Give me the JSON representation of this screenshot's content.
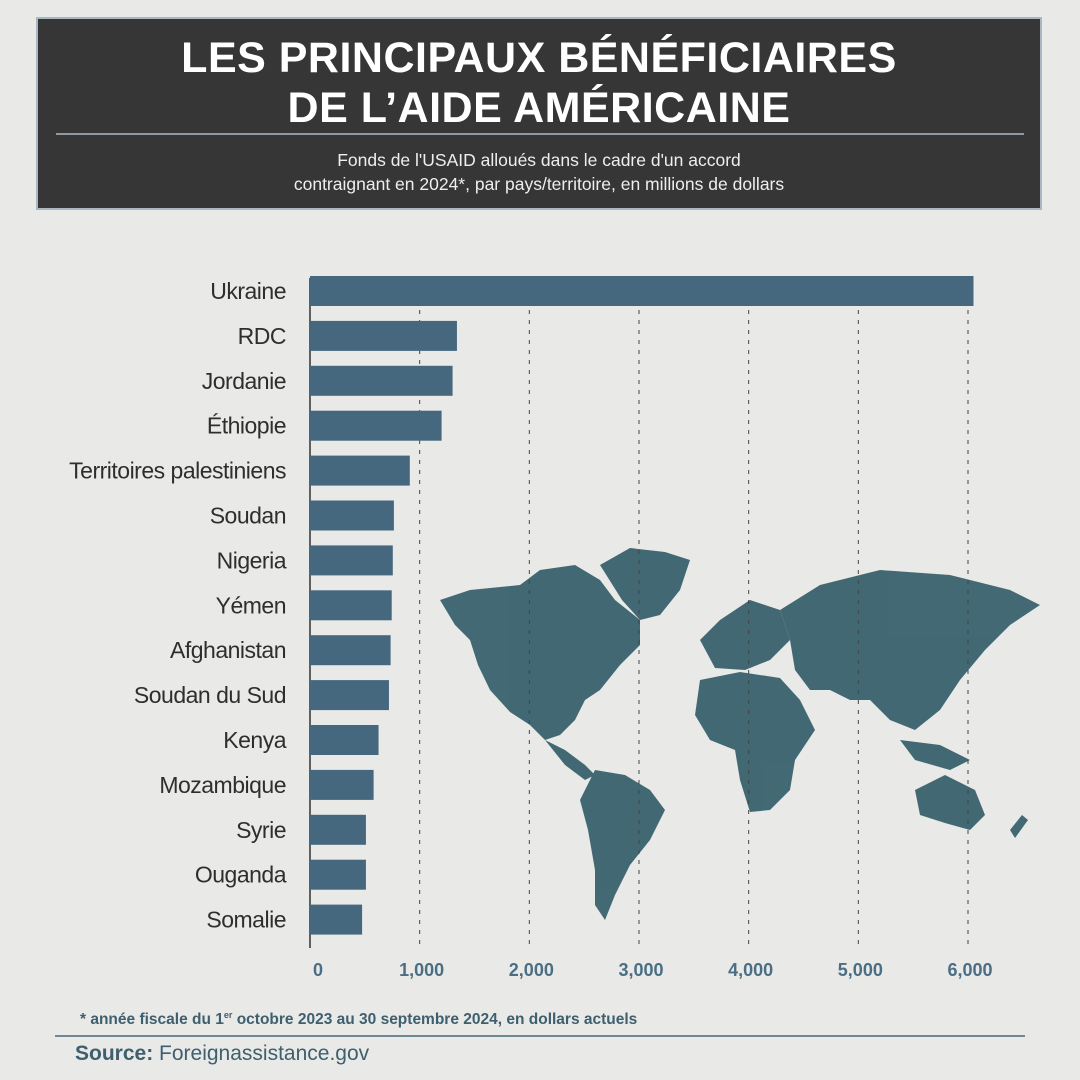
{
  "header": {
    "title_line1": "LES PRINCIPAUX BÉNÉFICIAIRES",
    "title_line2": "DE L’AIDE AMÉRICAINE",
    "subtitle_line1": "Fonds de l'USAID alloués dans le cadre d'un accord",
    "subtitle_line2": "contraignant en 2024*, par pays/territoire, en millions de dollars"
  },
  "chart_data": {
    "type": "bar",
    "orientation": "horizontal",
    "title": "LES PRINCIPAUX BÉNÉFICIAIRES DE L’AIDE AMÉRICAINE",
    "categories": [
      "Ukraine",
      "RDC",
      "Jordanie",
      "Éthiopie",
      "Territoires palestiniens",
      "Soudan",
      "Nigeria",
      "Yémen",
      "Afghanistan",
      "Soudan du Sud",
      "Kenya",
      "Mozambique",
      "Syrie",
      "Ouganda",
      "Somalie"
    ],
    "values": [
      6050,
      1340,
      1300,
      1200,
      910,
      765,
      755,
      745,
      735,
      720,
      625,
      580,
      510,
      510,
      475
    ],
    "xlim": [
      0,
      6000
    ],
    "xticks": [
      "0",
      "1,000",
      "2,000",
      "3,000",
      "4,000",
      "5,000",
      "6,000"
    ],
    "grid": "vertical dashed",
    "bar_color": "#46687f"
  },
  "footer": {
    "footnote_pre": "* année fiscale du 1",
    "footnote_sup": "er",
    "footnote_post": " octobre 2023 au 30 septembre 2024, en dollars actuels",
    "source_label": "Source:",
    "source_value": " Foreignassistance.gov"
  }
}
